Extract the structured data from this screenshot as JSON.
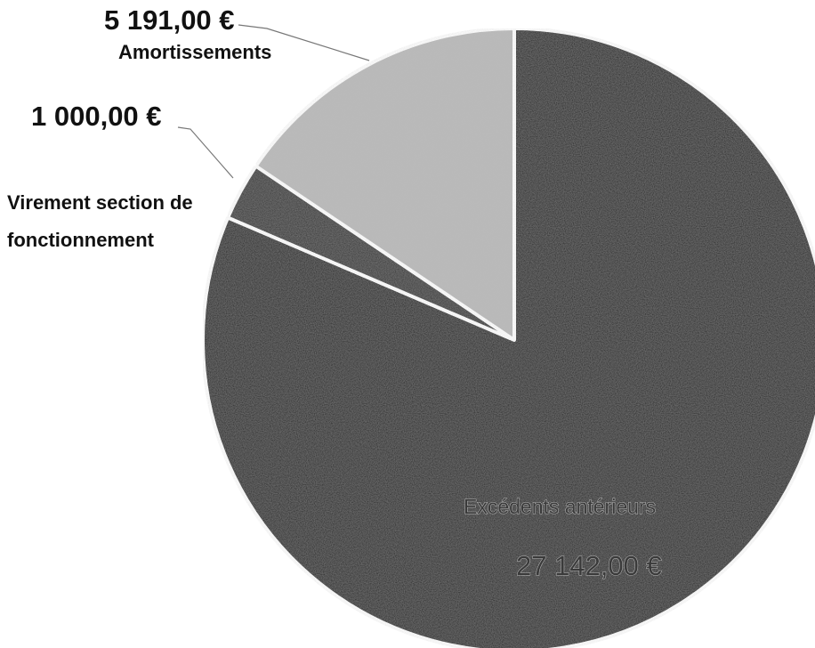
{
  "chart_data": {
    "type": "pie",
    "title": "",
    "start_angle_deg": 0,
    "direction": "clockwise",
    "slices": [
      {
        "label": "Excédents antérieurs",
        "value": 27142.0,
        "value_label": "27 142,00 €",
        "color": "#181818"
      },
      {
        "label": "Virement section de fonctionnement",
        "value": 1000.0,
        "value_label": "1 000,00 €",
        "color": "#2b2b2b"
      },
      {
        "label": "Amortissements",
        "value": 5191.0,
        "value_label": "5 191,00 €",
        "color": "#b9b9b9"
      }
    ],
    "legend": "none",
    "data_labels": "outside with leader lines, largest slice inside"
  }
}
